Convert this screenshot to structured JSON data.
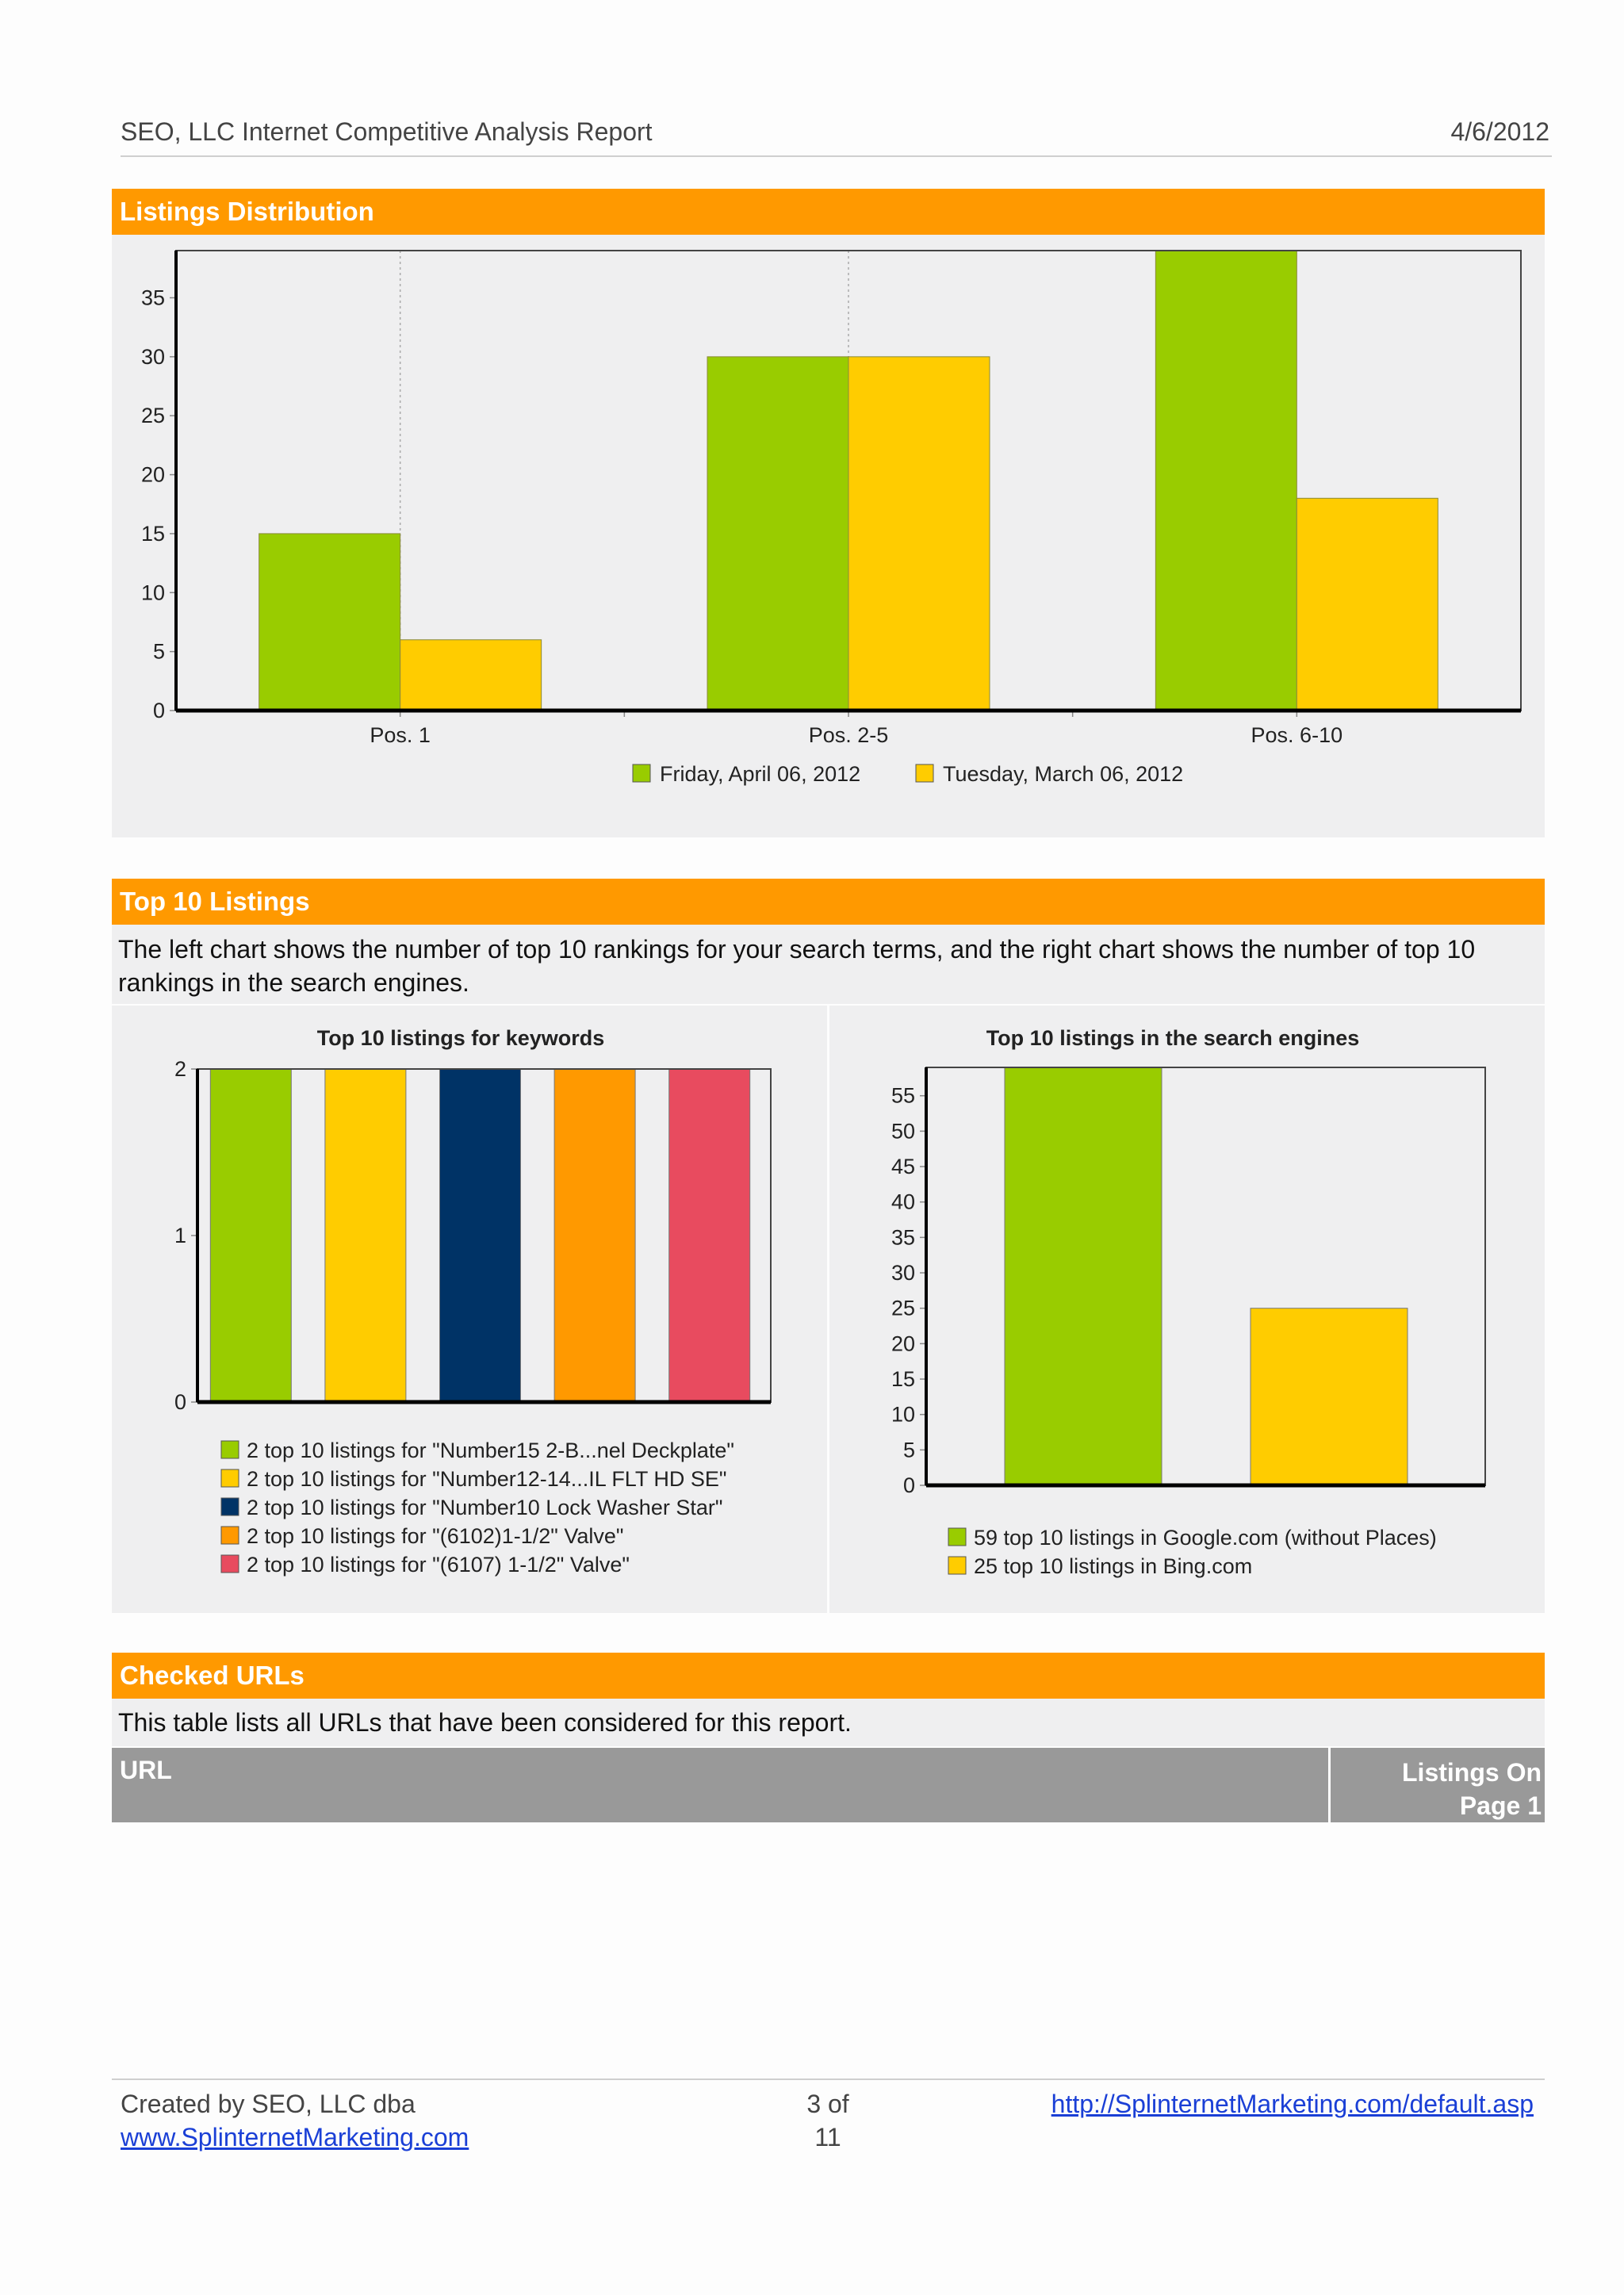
{
  "header": {
    "title": "SEO, LLC Internet Competitive Analysis Report",
    "date": "4/6/2012"
  },
  "sections": {
    "listings_distribution": {
      "title": "Listings Distribution"
    },
    "top10": {
      "title": "Top 10 Listings",
      "description": "The left chart shows the number of top 10 rankings for your search terms, and the right chart shows the number of top 10 rankings in the search engines."
    },
    "checked_urls": {
      "title": "Checked URLs",
      "description": "This table lists all URLs that have been considered for this report.",
      "columns": [
        "URL",
        "Listings On Page 1"
      ]
    }
  },
  "chart_data": [
    {
      "type": "bar",
      "title": "",
      "categories": [
        "Pos. 1",
        "Pos. 2-5",
        "Pos. 6-10"
      ],
      "series": [
        {
          "name": "Friday, April 06, 2012",
          "values": [
            15,
            30,
            39
          ],
          "color": "#99cc00"
        },
        {
          "name": "Tuesday, March 06, 2012",
          "values": [
            6,
            30,
            18
          ],
          "color": "#ffcc00"
        }
      ],
      "ylim": [
        0,
        39
      ],
      "yticks": [
        0,
        5,
        10,
        15,
        20,
        25,
        30,
        35
      ],
      "legend": "bottom"
    },
    {
      "type": "bar",
      "title": "Top 10 listings for keywords",
      "series": [
        {
          "name": "2 top 10 listings for \"Number15 2-B...nel Deckplate\"",
          "value": 2,
          "color": "#99cc00"
        },
        {
          "name": "2 top 10 listings for \"Number12-14...IL FLT HD SE\"",
          "value": 2,
          "color": "#ffcc00"
        },
        {
          "name": "2 top 10 listings for \"Number10 Lock Washer Star\"",
          "value": 2,
          "color": "#003366"
        },
        {
          "name": "2 top 10 listings for \"(6102)1-1/2\" Valve\"",
          "value": 2,
          "color": "#ff9900"
        },
        {
          "name": "2 top 10 listings for \"(6107) 1-1/2\" Valve\"",
          "value": 2,
          "color": "#e84b5f"
        }
      ],
      "ylim": [
        0,
        2
      ],
      "yticks": [
        0,
        1,
        2
      ],
      "legend": "bottom"
    },
    {
      "type": "bar",
      "title": "Top 10 listings in the search engines",
      "series": [
        {
          "name": "59 top 10 listings in Google.com (without Places)",
          "value": 59,
          "color": "#99cc00"
        },
        {
          "name": "25 top 10 listings in Bing.com",
          "value": 25,
          "color": "#ffcc00"
        }
      ],
      "ylim": [
        0,
        59
      ],
      "yticks": [
        0,
        5,
        10,
        15,
        20,
        25,
        30,
        35,
        40,
        45,
        50,
        55
      ],
      "legend": "bottom"
    }
  ],
  "footer": {
    "created_by": "Created by SEO, LLC dba",
    "site_link": "www.SplinternetMarketing.com",
    "page_of": "3 of",
    "page_total": "11",
    "url_link": "http://SplinternetMarketing.com/default.asp"
  }
}
